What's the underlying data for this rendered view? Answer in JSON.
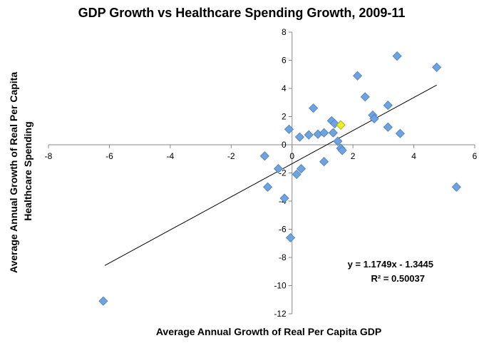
{
  "chart_data": {
    "type": "scatter",
    "title": "GDP Growth vs Healthcare Spending Growth, 2009-11",
    "xlabel": "Average Annual Growth of Real Per Capita GDP",
    "ylabel_lines": [
      "Average Annual Growth of Real Per Capita",
      "Healthcare Spending"
    ],
    "xlim": [
      -8,
      6
    ],
    "ylim": [
      -12,
      8
    ],
    "x_ticks": [
      "-8",
      "-6",
      "-4",
      "-2",
      "0",
      "2",
      "4",
      "6"
    ],
    "y_ticks": [
      "-12",
      "-10",
      "-8",
      "-6",
      "-4",
      "-2",
      "0",
      "2",
      "4",
      "6",
      "8"
    ],
    "grid": false,
    "marker_color": "#6fa3e0",
    "marker_stroke": "#4a7ebb",
    "highlight_color": "#e8f020",
    "highlight_stroke": "#9aa000",
    "trendline": {
      "slope": 1.1749,
      "intercept": -1.3445,
      "x_range": [
        -6.15,
        4.75
      ],
      "equation": "y = 1.1749x - 1.3445",
      "r_squared": "R² = 0.50037"
    },
    "points": [
      {
        "x": -6.2,
        "y": -11.1
      },
      {
        "x": -0.9,
        "y": -0.8
      },
      {
        "x": -0.8,
        "y": -3.0
      },
      {
        "x": -0.45,
        "y": -1.7
      },
      {
        "x": -0.25,
        "y": -3.8
      },
      {
        "x": -0.05,
        "y": -6.6
      },
      {
        "x": -0.1,
        "y": 1.1
      },
      {
        "x": 0.15,
        "y": -2.1
      },
      {
        "x": 0.3,
        "y": -1.7
      },
      {
        "x": 0.25,
        "y": 0.55
      },
      {
        "x": 0.55,
        "y": 0.7
      },
      {
        "x": 0.7,
        "y": 2.6
      },
      {
        "x": 0.85,
        "y": 0.75
      },
      {
        "x": 1.05,
        "y": 0.85
      },
      {
        "x": 1.05,
        "y": -1.2
      },
      {
        "x": 1.3,
        "y": 1.7
      },
      {
        "x": 1.35,
        "y": 0.85
      },
      {
        "x": 1.4,
        "y": 1.5
      },
      {
        "x": 1.5,
        "y": 0.25
      },
      {
        "x": 1.6,
        "y": -0.25
      },
      {
        "x": 1.65,
        "y": -0.4
      },
      {
        "x": 1.6,
        "y": 1.4,
        "highlight": true
      },
      {
        "x": 2.15,
        "y": 4.9
      },
      {
        "x": 2.4,
        "y": 3.4
      },
      {
        "x": 2.65,
        "y": 2.1
      },
      {
        "x": 2.7,
        "y": 1.85
      },
      {
        "x": 3.15,
        "y": 2.8
      },
      {
        "x": 3.15,
        "y": 1.25
      },
      {
        "x": 3.45,
        "y": 6.3
      },
      {
        "x": 3.55,
        "y": 0.8
      },
      {
        "x": 4.75,
        "y": 5.5
      },
      {
        "x": 5.4,
        "y": -3.0
      }
    ]
  }
}
